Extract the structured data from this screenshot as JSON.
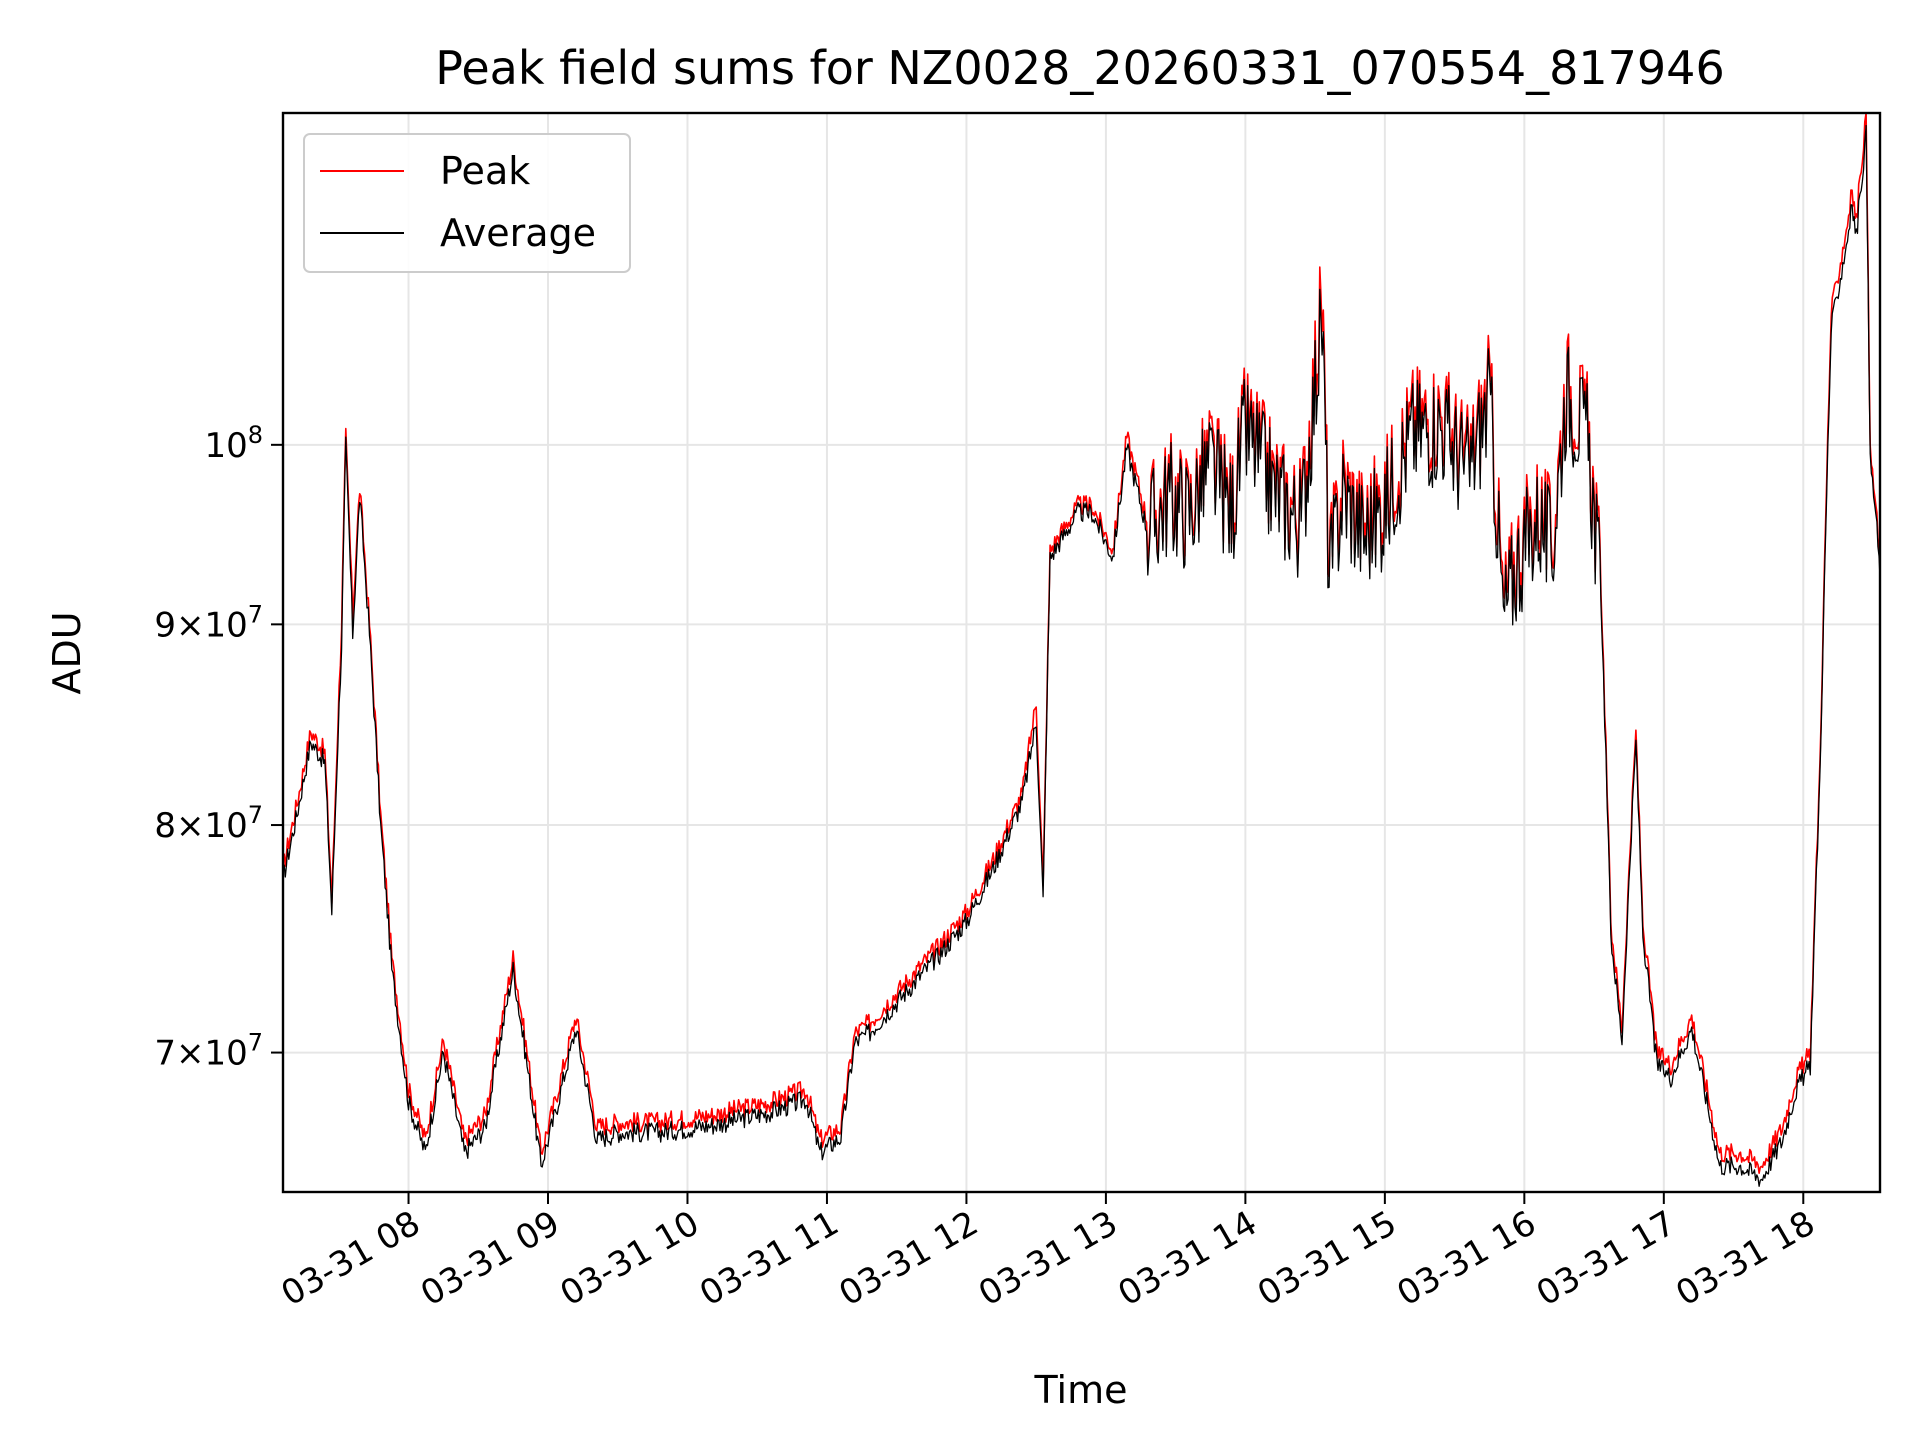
{
  "chart_data": {
    "type": "line",
    "title": "Peak field sums for NZ0028_20260331_070554_817946",
    "xlabel": "Time",
    "ylabel": "ADU",
    "yscale": "log",
    "xlim": [
      7.1,
      18.55
    ],
    "ylim": [
      64500000.0,
      121500000.0
    ],
    "grid": true,
    "legend_position": "top-left",
    "x_ticks": [
      {
        "x": 8,
        "label": "03-31 08"
      },
      {
        "x": 9,
        "label": "03-31 09"
      },
      {
        "x": 10,
        "label": "03-31 10"
      },
      {
        "x": 11,
        "label": "03-31 11"
      },
      {
        "x": 12,
        "label": "03-31 12"
      },
      {
        "x": 13,
        "label": "03-31 13"
      },
      {
        "x": 14,
        "label": "03-31 14"
      },
      {
        "x": 15,
        "label": "03-31 15"
      },
      {
        "x": 16,
        "label": "03-31 16"
      },
      {
        "x": 17,
        "label": "03-31 17"
      },
      {
        "x": 18,
        "label": "03-31 18"
      }
    ],
    "y_ticks": [
      {
        "value": 70000000,
        "mantissa": "7",
        "exp": "7"
      },
      {
        "value": 80000000,
        "mantissa": "8",
        "exp": "7"
      },
      {
        "value": 90000000,
        "mantissa": "9",
        "exp": "7"
      },
      {
        "value": 100000000,
        "base": "10",
        "exp": "8"
      }
    ],
    "series": [
      {
        "name": "Peak",
        "color": "#ff0000",
        "x": [
          7.1,
          7.2,
          7.3,
          7.4,
          7.45,
          7.52,
          7.55,
          7.6,
          7.65,
          7.72,
          7.8,
          7.88,
          8.0,
          8.12,
          8.25,
          8.4,
          8.55,
          8.75,
          8.85,
          8.95,
          9.05,
          9.2,
          9.35,
          9.5,
          9.8,
          10.2,
          10.6,
          10.85,
          10.95,
          11.1,
          11.2,
          11.3,
          11.5,
          11.8,
          12.0,
          12.2,
          12.4,
          12.5,
          12.55,
          12.6,
          12.8,
          12.9,
          13.05,
          13.15,
          13.3,
          13.45,
          13.6,
          13.75,
          13.9,
          14.0,
          14.2,
          14.4,
          14.55,
          14.6,
          14.7,
          14.85,
          15.0,
          15.1,
          15.2,
          15.4,
          15.6,
          15.75,
          15.85,
          15.95,
          16.1,
          16.2,
          16.3,
          16.45,
          16.55,
          16.62,
          16.7,
          16.8,
          16.85,
          16.95,
          17.05,
          17.2,
          17.4,
          17.55,
          17.7,
          17.85,
          17.95,
          18.05,
          18.12,
          18.2,
          18.3,
          18.35,
          18.38,
          18.45,
          18.48,
          18.52,
          18.55
        ],
        "y": [
          78000000,
          81000000,
          84500000,
          83500000,
          76500000,
          90000000,
          100500000,
          90500000,
          97500000,
          90000000,
          80500000,
          74000000,
          68500000,
          66500000,
          70500000,
          66500000,
          67500000,
          74000000,
          70000000,
          66000000,
          68000000,
          71500000,
          67000000,
          67200000,
          67200000,
          67500000,
          68000000,
          68500000,
          66500000,
          67000000,
          70800000,
          71200000,
          72500000,
          74500000,
          76000000,
          78500000,
          81500000,
          86000000,
          77000000,
          94000000,
          96500000,
          96500000,
          94000000,
          100500000,
          95500000,
          97500000,
          96500000,
          99500000,
          96500000,
          101500000,
          98000000,
          96000000,
          109000000,
          93000000,
          98000000,
          95500000,
          97000000,
          99500000,
          101500000,
          102000000,
          99000000,
          103500000,
          91000000,
          94000000,
          96500000,
          94500000,
          104000000,
          101000000,
          92000000,
          75500000,
          71000000,
          84500000,
          75500000,
          70000000,
          69500000,
          71500000,
          66000000,
          66000000,
          65500000,
          67000000,
          69000000,
          70000000,
          83000000,
          108000000,
          113000000,
          116000000,
          114000000,
          121500000,
          99500000,
          96500000,
          93000000
        ]
      },
      {
        "name": "Average",
        "color": "#000000",
        "x": [
          7.1,
          7.2,
          7.3,
          7.4,
          7.45,
          7.52,
          7.55,
          7.6,
          7.65,
          7.72,
          7.8,
          7.88,
          8.0,
          8.12,
          8.25,
          8.4,
          8.55,
          8.75,
          8.85,
          8.95,
          9.05,
          9.2,
          9.35,
          9.5,
          9.8,
          10.2,
          10.6,
          10.85,
          10.95,
          11.1,
          11.2,
          11.3,
          11.5,
          11.8,
          12.0,
          12.2,
          12.4,
          12.5,
          12.55,
          12.6,
          12.8,
          12.9,
          13.05,
          13.15,
          13.3,
          13.45,
          13.6,
          13.75,
          13.9,
          14.0,
          14.2,
          14.4,
          14.55,
          14.6,
          14.7,
          14.85,
          15.0,
          15.1,
          15.2,
          15.4,
          15.6,
          15.75,
          15.85,
          15.95,
          16.1,
          16.2,
          16.3,
          16.45,
          16.55,
          16.62,
          16.7,
          16.8,
          16.85,
          16.95,
          17.05,
          17.2,
          17.4,
          17.55,
          17.7,
          17.85,
          17.95,
          18.05,
          18.12,
          18.2,
          18.3,
          18.35,
          18.38,
          18.45,
          18.48,
          18.52,
          18.55
        ],
        "y": [
          77500000,
          80500000,
          84000000,
          83000000,
          76000000,
          89000000,
          100000000,
          89500000,
          97000000,
          89500000,
          80000000,
          73500000,
          68000000,
          66000000,
          70000000,
          66000000,
          67000000,
          73500000,
          69500000,
          65500000,
          67500000,
          71000000,
          66500000,
          66800000,
          66800000,
          67100000,
          67600000,
          68100000,
          66000000,
          66600000,
          70400000,
          70800000,
          72100000,
          74100000,
          75600000,
          78100000,
          81100000,
          85000000,
          76500000,
          93600000,
          96100000,
          96100000,
          93600000,
          99800000,
          95000000,
          97000000,
          96000000,
          98800000,
          96000000,
          100800000,
          97400000,
          95400000,
          107500000,
          92400000,
          97200000,
          94800000,
          96300000,
          98700000,
          100700000,
          101200000,
          98300000,
          102700000,
          90300000,
          93300000,
          95800000,
          93800000,
          103200000,
          100300000,
          91400000,
          75000000,
          70500000,
          84000000,
          75000000,
          69500000,
          69000000,
          71000000,
          65500000,
          65500000,
          65000000,
          66500000,
          68500000,
          69500000,
          82500000,
          107000000,
          112000000,
          115000000,
          113000000,
          120000000,
          99000000,
          96000000,
          92500000
        ]
      }
    ]
  }
}
